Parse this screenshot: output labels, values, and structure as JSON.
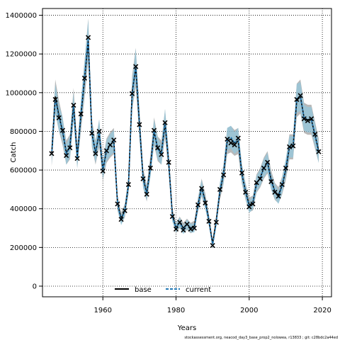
{
  "chart_data": {
    "type": "line",
    "xlabel": "Years",
    "ylabel": "Catch",
    "xlim": [
      1943.5,
      2022.5
    ],
    "ylim": [
      -55000,
      1435000
    ],
    "x_ticks": [
      1960,
      1980,
      2000,
      2020
    ],
    "y_ticks": [
      0,
      200000,
      400000,
      600000,
      800000,
      1000000,
      1200000,
      1400000
    ],
    "grid": true,
    "legend_position": "bottom-left",
    "series": [
      {
        "name": "base",
        "color": "#000000",
        "line_style": "solid",
        "band_color": "#808080"
      },
      {
        "name": "current",
        "color": "#1f77b4",
        "line_style": "dashed",
        "band_color": "#87CEEB"
      }
    ],
    "x": [
      1946,
      1947,
      1948,
      1949,
      1950,
      1951,
      1952,
      1953,
      1954,
      1955,
      1956,
      1957,
      1958,
      1959,
      1960,
      1961,
      1962,
      1963,
      1964,
      1965,
      1966,
      1967,
      1968,
      1969,
      1970,
      1971,
      1972,
      1973,
      1974,
      1975,
      1976,
      1977,
      1978,
      1979,
      1980,
      1981,
      1982,
      1983,
      1984,
      1985,
      1986,
      1987,
      1988,
      1989,
      1990,
      1991,
      1992,
      1993,
      1994,
      1995,
      1996,
      1997,
      1998,
      1999,
      2000,
      2001,
      2002,
      2003,
      2004,
      2005,
      2006,
      2007,
      2008,
      2009,
      2010,
      2011,
      2012,
      2013,
      2014,
      2015,
      2016,
      2017,
      2018,
      2019
    ],
    "base_values": [
      680000,
      980000,
      880000,
      800000,
      690000,
      720000,
      940000,
      670000,
      880000,
      1070000,
      1270000,
      790000,
      690000,
      790000,
      600000,
      700000,
      730000,
      750000,
      430000,
      350000,
      390000,
      520000,
      1000000,
      1130000,
      840000,
      560000,
      480000,
      620000,
      800000,
      710000,
      690000,
      840000,
      640000,
      370000,
      300000,
      330000,
      300000,
      320000,
      300000,
      310000,
      420000,
      510000,
      440000,
      340000,
      220000,
      340000,
      490000,
      580000,
      750000,
      760000,
      740000,
      750000,
      580000,
      490000,
      420000,
      430000,
      530000,
      560000,
      610000,
      640000,
      550000,
      490000,
      470000,
      520000,
      600000,
      720000,
      720000,
      960000,
      980000,
      870000,
      860000,
      860000,
      780000,
      700000
    ],
    "current_values": [
      680000,
      970000,
      870000,
      810000,
      680000,
      720000,
      930000,
      660000,
      890000,
      1080000,
      1280000,
      790000,
      690000,
      800000,
      600000,
      700000,
      730000,
      750000,
      430000,
      340000,
      390000,
      520000,
      990000,
      1140000,
      840000,
      550000,
      480000,
      610000,
      800000,
      710000,
      680000,
      850000,
      640000,
      360000,
      300000,
      330000,
      290000,
      320000,
      300000,
      300000,
      420000,
      510000,
      430000,
      340000,
      210000,
      330000,
      500000,
      580000,
      760000,
      770000,
      740000,
      760000,
      580000,
      490000,
      410000,
      430000,
      530000,
      560000,
      610000,
      640000,
      540000,
      490000,
      460000,
      520000,
      610000,
      720000,
      720000,
      970000,
      980000,
      870000,
      860000,
      860000,
      780000,
      690000
    ],
    "observed_x": [
      1946,
      1947,
      1948,
      1949,
      1950,
      1951,
      1952,
      1953,
      1954,
      1955,
      1956,
      1957,
      1958,
      1959,
      1960,
      1961,
      1962,
      1963,
      1964,
      1965,
      1966,
      1967,
      1968,
      1969,
      1970,
      1971,
      1972,
      1973,
      1974,
      1975,
      1976,
      1977,
      1978,
      1979,
      1980,
      1981,
      1982,
      1983,
      1984,
      1985,
      1986,
      1987,
      1988,
      1989,
      1990,
      1991,
      1992,
      1993,
      1994,
      1995,
      1996,
      1997,
      1998,
      1999,
      2000,
      2001,
      2002,
      2003,
      2004,
      2005,
      2006,
      2007,
      2008,
      2009,
      2010,
      2011,
      2012,
      2013,
      2014,
      2015,
      2016,
      2017,
      2018,
      2019
    ],
    "observed_values": [
      685000,
      965000,
      870000,
      805000,
      675000,
      715000,
      935000,
      660000,
      890000,
      1075000,
      1285000,
      790000,
      685000,
      800000,
      595000,
      700000,
      730000,
      755000,
      425000,
      345000,
      390000,
      525000,
      995000,
      1135000,
      835000,
      555000,
      475000,
      610000,
      805000,
      715000,
      680000,
      845000,
      640000,
      360000,
      295000,
      330000,
      290000,
      320000,
      295000,
      300000,
      420000,
      505000,
      430000,
      335000,
      210000,
      330000,
      500000,
      575000,
      760000,
      740000,
      730000,
      765000,
      585000,
      485000,
      410000,
      425000,
      535000,
      555000,
      610000,
      640000,
      540000,
      485000,
      465000,
      525000,
      610000,
      720000,
      725000,
      965000,
      985000,
      865000,
      855000,
      865000,
      785000,
      695000
    ],
    "band_relative_width": 0.09
  },
  "legend": {
    "base_label": "base",
    "current_label": "current"
  },
  "footer": {
    "text": "stockassessment.org, neacod_day3_base_prop2_nolowea, r13833 ; git: c28bdc2a44ed"
  }
}
